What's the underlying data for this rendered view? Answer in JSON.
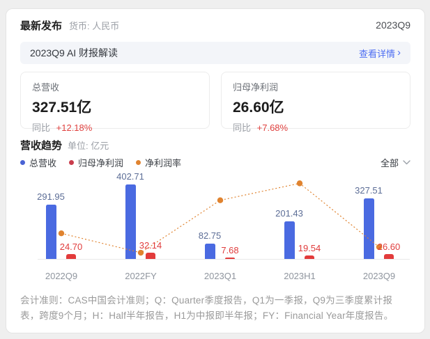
{
  "header": {
    "title": "最新发布",
    "currency_label": "货币: 人民币",
    "period": "2023Q9"
  },
  "ai_banner": {
    "title": "2023Q9 AI 财报解读",
    "link_label": "查看详情",
    "link_arrow": "›"
  },
  "stat_cards": [
    {
      "label": "总营收",
      "value": "327.51亿",
      "yoy_label": "同比",
      "yoy_value": "+12.18%"
    },
    {
      "label": "归母净利润",
      "value": "26.60亿",
      "yoy_label": "同比",
      "yoy_value": "+7.68%"
    }
  ],
  "trend_section": {
    "title": "营收趋势",
    "unit": "单位: 亿元",
    "filter_label": "全部"
  },
  "legend": [
    {
      "label": "总营收",
      "color": "#4a63d4"
    },
    {
      "label": "归母净利润",
      "color": "#c93d4c"
    },
    {
      "label": "净利润率",
      "color": "#e0832f"
    }
  ],
  "chart_data": {
    "type": "bar",
    "categories": [
      "2022Q9",
      "2022FY",
      "2023Q1",
      "2023H1",
      "2023Q9"
    ],
    "series": [
      {
        "name": "总营收",
        "type": "bar",
        "color": "#4a6ae1",
        "values": [
          291.95,
          402.71,
          82.75,
          201.43,
          327.51
        ]
      },
      {
        "name": "归母净利润",
        "type": "bar",
        "color": "#e23b3b",
        "values": [
          24.7,
          32.14,
          7.68,
          19.54,
          26.6
        ]
      },
      {
        "name": "净利润率",
        "type": "line",
        "style": "dotted",
        "color": "#e0832f",
        "values_pct_estimated": [
          8.46,
          7.98,
          9.28,
          9.7,
          8.12
        ],
        "data_labels_shown": false
      }
    ],
    "unit": "亿元",
    "bar_data_labels_shown": true,
    "grid": false,
    "axis_hints": {
      "bar_ymax": 474,
      "line_ylim_pct": [
        7.1,
        10.0
      ]
    }
  },
  "footer": {
    "note": "会计准则：CAS中国会计准则；Q：Quarter季度报告，Q1为一季报，Q9为三季度累计报表，跨度9个月；H：Half半年报告，H1为中报即半年报；FY：Financial Year年度报告。"
  }
}
